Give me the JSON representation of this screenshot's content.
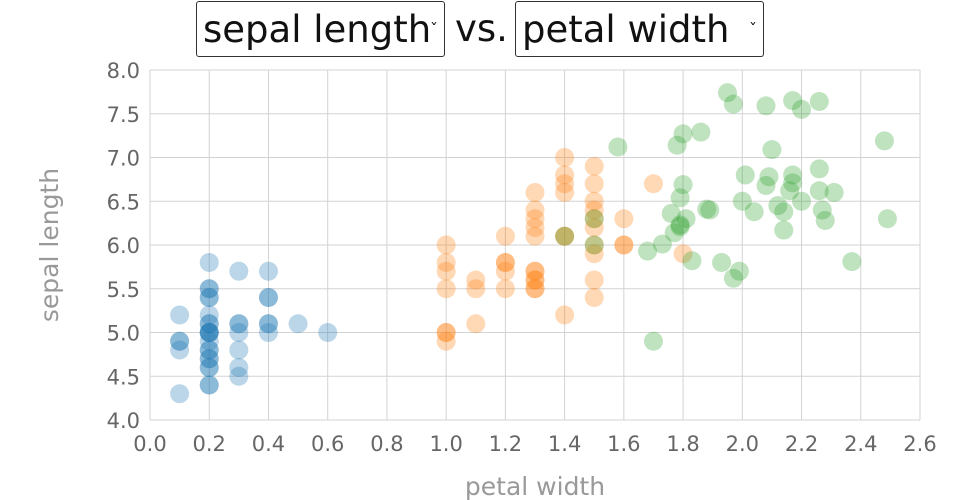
{
  "controls": {
    "y_select_value": "sepal length",
    "x_select_value": "petal width",
    "separator": "vs.",
    "caret_icon": "chevron-down-icon"
  },
  "chart_data": {
    "type": "scatter",
    "xlabel": "petal width",
    "ylabel": "sepal length",
    "xlim": [
      0.0,
      2.6
    ],
    "ylim": [
      4.0,
      8.0
    ],
    "x_ticks": [
      "0.0",
      "0.2",
      "0.4",
      "0.6",
      "0.8",
      "1.0",
      "1.2",
      "1.4",
      "1.6",
      "1.8",
      "2.0",
      "2.2",
      "2.4",
      "2.6"
    ],
    "y_ticks": [
      "4.0",
      "4.5",
      "5.0",
      "5.5",
      "6.0",
      "6.5",
      "7.0",
      "7.5",
      "8.0"
    ],
    "grid": true,
    "marker_opacity": 0.3,
    "series": [
      {
        "color": "#1f77b4",
        "points": [
          [
            0.1,
            5.2
          ],
          [
            0.1,
            4.9
          ],
          [
            0.1,
            4.9
          ],
          [
            0.1,
            4.8
          ],
          [
            0.1,
            4.3
          ],
          [
            0.2,
            5.8
          ],
          [
            0.2,
            5.5
          ],
          [
            0.2,
            5.5
          ],
          [
            0.2,
            5.4
          ],
          [
            0.2,
            5.4
          ],
          [
            0.2,
            5.2
          ],
          [
            0.2,
            5.1
          ],
          [
            0.2,
            5.1
          ],
          [
            0.2,
            5.0
          ],
          [
            0.2,
            5.0
          ],
          [
            0.2,
            5.0
          ],
          [
            0.2,
            5.0
          ],
          [
            0.2,
            4.9
          ],
          [
            0.2,
            4.8
          ],
          [
            0.2,
            4.8
          ],
          [
            0.2,
            4.7
          ],
          [
            0.2,
            4.7
          ],
          [
            0.2,
            4.6
          ],
          [
            0.2,
            4.6
          ],
          [
            0.2,
            4.4
          ],
          [
            0.2,
            4.4
          ],
          [
            0.3,
            5.7
          ],
          [
            0.3,
            5.1
          ],
          [
            0.3,
            5.1
          ],
          [
            0.3,
            5.0
          ],
          [
            0.3,
            4.8
          ],
          [
            0.3,
            4.6
          ],
          [
            0.3,
            4.5
          ],
          [
            0.4,
            5.7
          ],
          [
            0.4,
            5.4
          ],
          [
            0.4,
            5.4
          ],
          [
            0.4,
            5.1
          ],
          [
            0.4,
            5.1
          ],
          [
            0.4,
            5.0
          ],
          [
            0.5,
            5.1
          ],
          [
            0.6,
            5.0
          ]
        ]
      },
      {
        "color": "#ff7f0e",
        "points": [
          [
            1.0,
            6.0
          ],
          [
            1.0,
            5.8
          ],
          [
            1.0,
            5.7
          ],
          [
            1.0,
            5.5
          ],
          [
            1.0,
            5.0
          ],
          [
            1.0,
            5.0
          ],
          [
            1.0,
            4.9
          ],
          [
            1.1,
            5.6
          ],
          [
            1.1,
            5.5
          ],
          [
            1.1,
            5.1
          ],
          [
            1.2,
            6.1
          ],
          [
            1.2,
            5.8
          ],
          [
            1.2,
            5.8
          ],
          [
            1.2,
            5.7
          ],
          [
            1.2,
            5.5
          ],
          [
            1.3,
            6.6
          ],
          [
            1.3,
            6.4
          ],
          [
            1.3,
            6.3
          ],
          [
            1.3,
            6.2
          ],
          [
            1.3,
            6.1
          ],
          [
            1.3,
            5.7
          ],
          [
            1.3,
            5.7
          ],
          [
            1.3,
            5.6
          ],
          [
            1.3,
            5.6
          ],
          [
            1.3,
            5.5
          ],
          [
            1.3,
            5.5
          ],
          [
            1.4,
            7.0
          ],
          [
            1.4,
            6.8
          ],
          [
            1.4,
            6.7
          ],
          [
            1.4,
            6.6
          ],
          [
            1.4,
            6.1
          ],
          [
            1.4,
            6.1
          ],
          [
            1.4,
            5.2
          ],
          [
            1.5,
            6.9
          ],
          [
            1.5,
            6.7
          ],
          [
            1.5,
            6.5
          ],
          [
            1.5,
            6.4
          ],
          [
            1.5,
            6.3
          ],
          [
            1.5,
            6.2
          ],
          [
            1.5,
            6.0
          ],
          [
            1.5,
            5.9
          ],
          [
            1.5,
            5.6
          ],
          [
            1.5,
            5.4
          ],
          [
            1.6,
            6.3
          ],
          [
            1.6,
            6.0
          ],
          [
            1.6,
            6.0
          ],
          [
            1.7,
            6.7
          ],
          [
            1.8,
            5.9
          ]
        ]
      },
      {
        "color": "#2ca02c",
        "points": [
          [
            1.4,
            6.1
          ],
          [
            1.5,
            6.3
          ],
          [
            1.5,
            6.0
          ],
          [
            1.58,
            7.12
          ],
          [
            1.68,
            5.93
          ],
          [
            1.7,
            4.9
          ],
          [
            1.73,
            6.01
          ],
          [
            1.76,
            6.36
          ],
          [
            1.77,
            6.14
          ],
          [
            1.78,
            7.14
          ],
          [
            1.79,
            6.54
          ],
          [
            1.79,
            6.23
          ],
          [
            1.79,
            6.21
          ],
          [
            1.8,
            7.27
          ],
          [
            1.8,
            6.69
          ],
          [
            1.81,
            6.3
          ],
          [
            1.83,
            5.82
          ],
          [
            1.86,
            7.29
          ],
          [
            1.88,
            6.41
          ],
          [
            1.89,
            6.4
          ],
          [
            1.93,
            5.8
          ],
          [
            1.95,
            7.74
          ],
          [
            1.97,
            7.61
          ],
          [
            1.97,
            5.62
          ],
          [
            1.99,
            5.7
          ],
          [
            2.0,
            6.5
          ],
          [
            2.01,
            6.8
          ],
          [
            2.04,
            6.38
          ],
          [
            2.08,
            7.59
          ],
          [
            2.08,
            6.68
          ],
          [
            2.09,
            6.78
          ],
          [
            2.1,
            7.09
          ],
          [
            2.12,
            6.45
          ],
          [
            2.14,
            6.38
          ],
          [
            2.14,
            6.17
          ],
          [
            2.16,
            6.62
          ],
          [
            2.17,
            6.71
          ],
          [
            2.17,
            6.8
          ],
          [
            2.17,
            7.65
          ],
          [
            2.2,
            7.55
          ],
          [
            2.2,
            6.5
          ],
          [
            2.26,
            6.87
          ],
          [
            2.26,
            6.62
          ],
          [
            2.26,
            7.64
          ],
          [
            2.27,
            6.4
          ],
          [
            2.28,
            6.28
          ],
          [
            2.31,
            6.6
          ],
          [
            2.37,
            5.81
          ],
          [
            2.48,
            7.19
          ],
          [
            2.49,
            6.3
          ]
        ]
      }
    ]
  }
}
